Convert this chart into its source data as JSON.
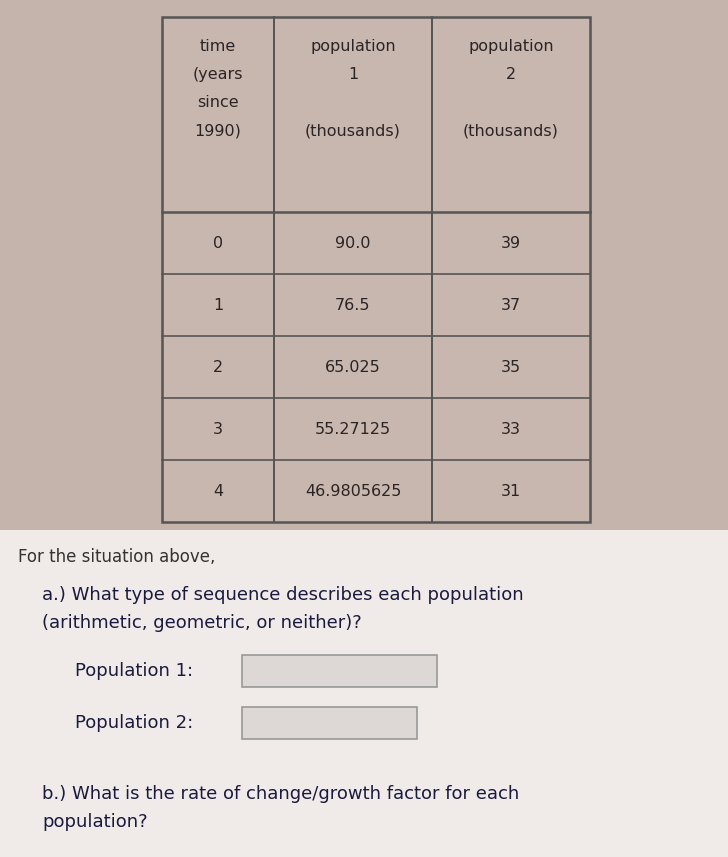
{
  "table_headers_col0": [
    "time",
    "(years",
    "since",
    "1990)"
  ],
  "table_headers_col1_top": "population",
  "table_headers_col1_num": "1",
  "table_headers_col1_bot": "(thousands)",
  "table_headers_col2_top": "population",
  "table_headers_col2_num": "2",
  "table_headers_col2_bot": "(thousands)",
  "table_rows": [
    [
      "0",
      "90.0",
      "39"
    ],
    [
      "1",
      "76.5",
      "37"
    ],
    [
      "2",
      "65.025",
      "35"
    ],
    [
      "3",
      "55.27125",
      "33"
    ],
    [
      "4",
      "46.9805625",
      "31"
    ]
  ],
  "bg_color": "#c5b4ac",
  "table_bg": "#c8b7af",
  "table_edge": "#555555",
  "text_color": "#2b2424",
  "intro_text": "For the situation above,",
  "question_a_line1": "a.) What type of sequence describes each population",
  "question_a_line2": "(arithmetic, geometric, or neither)?",
  "pop1_label": "Population 1:",
  "pop2_label": "Population 2:",
  "question_b_line1": "b.) What is the rate of change/growth factor for each",
  "question_b_line2": "population?",
  "input_box_bg": "#ddd8d5",
  "input_box_edge": "#999999",
  "fig_width": 7.28,
  "fig_height": 8.57,
  "dpi": 100
}
